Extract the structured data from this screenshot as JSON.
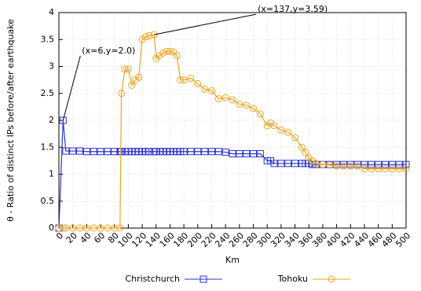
{
  "chart_data": {
    "type": "line",
    "y_label": "θ - Ratio of distinct IPs before/after earthquake",
    "x_label": "Km",
    "x": [
      0,
      6,
      10,
      20,
      30,
      40,
      50,
      60,
      70,
      80,
      88,
      90,
      95,
      100,
      105,
      110,
      115,
      120,
      125,
      130,
      137,
      140,
      145,
      150,
      155,
      160,
      165,
      170,
      175,
      180,
      190,
      200,
      210,
      220,
      230,
      240,
      250,
      260,
      270,
      280,
      290,
      300,
      305,
      310,
      320,
      330,
      340,
      350,
      355,
      360,
      365,
      370,
      380,
      390,
      400,
      410,
      420,
      430,
      440,
      450,
      460,
      470,
      480,
      490,
      500
    ],
    "series": [
      {
        "name": "Christchurch",
        "color": "#2a35d0",
        "marker": "square",
        "values": [
          0,
          2.0,
          1.43,
          1.43,
          1.43,
          1.42,
          1.42,
          1.42,
          1.42,
          1.42,
          1.42,
          1.42,
          1.42,
          1.42,
          1.42,
          1.42,
          1.42,
          1.42,
          1.42,
          1.42,
          1.42,
          1.42,
          1.42,
          1.42,
          1.42,
          1.42,
          1.42,
          1.42,
          1.42,
          1.42,
          1.42,
          1.42,
          1.42,
          1.42,
          1.42,
          1.41,
          1.38,
          1.38,
          1.38,
          1.38,
          1.38,
          1.25,
          1.25,
          1.2,
          1.2,
          1.2,
          1.2,
          1.2,
          1.2,
          1.2,
          1.18,
          1.18,
          1.18,
          1.18,
          1.18,
          1.18,
          1.18,
          1.18,
          1.18,
          1.18,
          1.18,
          1.18,
          1.18,
          1.18,
          1.18
        ]
      },
      {
        "name": "Tohoku",
        "color": "#eea320",
        "marker": "circle",
        "values": [
          0,
          0,
          0,
          0,
          0,
          0,
          0,
          0,
          0,
          0,
          0,
          2.5,
          2.95,
          2.95,
          2.65,
          2.75,
          2.8,
          3.5,
          3.55,
          3.57,
          3.59,
          3.15,
          3.2,
          3.25,
          3.28,
          3.28,
          3.27,
          3.2,
          2.75,
          2.75,
          2.78,
          2.68,
          2.58,
          2.55,
          2.4,
          2.42,
          2.38,
          2.3,
          2.28,
          2.22,
          2.12,
          1.9,
          1.95,
          1.9,
          1.82,
          1.78,
          1.68,
          1.5,
          1.4,
          1.3,
          1.25,
          1.2,
          1.18,
          1.17,
          1.15,
          1.15,
          1.15,
          1.15,
          1.1,
          1.1,
          1.1,
          1.1,
          1.1,
          1.1,
          1.1
        ]
      }
    ],
    "annotations": [
      {
        "text": "(x=6,y=2.0)",
        "x": 6,
        "y": 2.0
      },
      {
        "text": "(x=137,y=3.59)",
        "x": 137,
        "y": 3.59
      }
    ],
    "xlim": [
      0,
      500
    ],
    "xticks": [
      0,
      20,
      40,
      60,
      80,
      100,
      120,
      140,
      160,
      180,
      200,
      220,
      240,
      260,
      280,
      300,
      320,
      340,
      360,
      380,
      400,
      420,
      440,
      460,
      480,
      500
    ],
    "ylim": [
      0,
      4
    ],
    "yticks": [
      0,
      0.5,
      1,
      1.5,
      2,
      2.5,
      3,
      3.5,
      4
    ],
    "grid": true
  }
}
